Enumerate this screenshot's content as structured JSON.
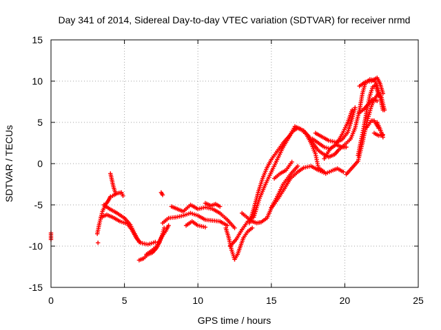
{
  "chart_data": {
    "type": "scatter",
    "title": "Day 341 of 2014, Sidereal Day-to-day VTEC variation (SDTVAR) for receiver nrmd",
    "xlabel": "GPS time / hours",
    "ylabel": "SDTVAR / TECUs",
    "xlim": [
      0,
      25
    ],
    "ylim": [
      -15,
      15
    ],
    "xticks": [
      0,
      5,
      10,
      15,
      20,
      25
    ],
    "yticks": [
      -15,
      -10,
      -5,
      0,
      5,
      10,
      15
    ],
    "xtick_labels": [
      "0",
      "5",
      "10",
      "15",
      "20",
      "25"
    ],
    "ytick_labels": [
      "-15",
      "-10",
      "-5",
      "0",
      "5",
      "10",
      "15"
    ],
    "grid": true,
    "marker": "+",
    "color": "#ff0000",
    "series": [
      {
        "name": "SDTVAR",
        "tracks": [
          [
            [
              0.0,
              -8.4
            ],
            [
              0.0,
              -9.2
            ]
          ],
          [
            [
              3.2,
              -9.6
            ]
          ],
          [
            [
              3.15,
              -8.5
            ],
            [
              3.3,
              -7.2
            ],
            [
              3.5,
              -5.8
            ],
            [
              3.7,
              -5.0
            ],
            [
              3.9,
              -4.5
            ],
            [
              4.05,
              -4.0
            ]
          ],
          [
            [
              4.05,
              -1.2
            ],
            [
              4.15,
              -2.0
            ],
            [
              4.25,
              -2.8
            ],
            [
              4.4,
              -3.6
            ]
          ],
          [
            [
              4.2,
              -3.9
            ],
            [
              4.5,
              -3.6
            ],
            [
              4.8,
              -3.5
            ],
            [
              4.9,
              -3.9
            ]
          ],
          [
            [
              3.4,
              -6.5
            ],
            [
              3.8,
              -6.2
            ],
            [
              4.2,
              -6.5
            ],
            [
              4.7,
              -7.0
            ],
            [
              5.2,
              -7.3
            ],
            [
              5.5,
              -8.0
            ],
            [
              5.8,
              -9.0
            ],
            [
              6.1,
              -9.6
            ],
            [
              6.6,
              -9.8
            ],
            [
              7.1,
              -9.5
            ]
          ],
          [
            [
              3.6,
              -5.0
            ],
            [
              4.0,
              -5.5
            ],
            [
              4.5,
              -6.0
            ],
            [
              5.0,
              -6.6
            ],
            [
              5.4,
              -7.4
            ],
            [
              5.7,
              -8.5
            ],
            [
              6.0,
              -9.5
            ]
          ],
          [
            [
              6.0,
              -11.7
            ],
            [
              6.3,
              -11.5
            ],
            [
              6.6,
              -11.0
            ],
            [
              6.9,
              -10.8
            ],
            [
              7.2,
              -10.2
            ],
            [
              7.4,
              -9.5
            ],
            [
              7.6,
              -8.5
            ],
            [
              7.7,
              -7.8
            ]
          ],
          [
            [
              6.5,
              -11.0
            ],
            [
              6.9,
              -10.5
            ],
            [
              7.2,
              -10.0
            ],
            [
              7.5,
              -9.0
            ],
            [
              7.8,
              -8.2
            ],
            [
              8.0,
              -7.5
            ]
          ],
          [
            [
              7.5,
              -3.5
            ],
            [
              7.6,
              -3.8
            ]
          ],
          [
            [
              7.6,
              -7.2
            ],
            [
              8.0,
              -6.6
            ],
            [
              8.5,
              -6.5
            ],
            [
              9.0,
              -6.3
            ],
            [
              9.5,
              -6.0
            ],
            [
              10.0,
              -6.3
            ],
            [
              10.5,
              -6.8
            ],
            [
              11.0,
              -6.9
            ],
            [
              11.5,
              -7.0
            ],
            [
              12.0,
              -7.5
            ]
          ],
          [
            [
              8.2,
              -5.2
            ],
            [
              8.6,
              -5.5
            ],
            [
              9.0,
              -5.8
            ],
            [
              9.5,
              -5.0
            ],
            [
              10.0,
              -5.5
            ],
            [
              10.5,
              -5.3
            ],
            [
              11.0,
              -5.5
            ],
            [
              11.5,
              -6.0
            ],
            [
              12.0,
              -6.8
            ],
            [
              12.5,
              -7.8
            ]
          ],
          [
            [
              9.2,
              -7.5
            ],
            [
              9.6,
              -7.0
            ],
            [
              10.0,
              -7.5
            ],
            [
              10.5,
              -7.7
            ]
          ],
          [
            [
              10.5,
              -4.8
            ],
            [
              10.9,
              -5.1
            ],
            [
              11.2,
              -4.9
            ],
            [
              11.5,
              -5.2
            ]
          ],
          [
            [
              11.9,
              -7.8
            ],
            [
              12.1,
              -9.0
            ],
            [
              12.3,
              -10.5
            ],
            [
              12.5,
              -11.6
            ]
          ],
          [
            [
              12.5,
              -11.6
            ],
            [
              12.7,
              -11.0
            ],
            [
              12.9,
              -10.0
            ],
            [
              13.1,
              -9.0
            ],
            [
              13.4,
              -8.2
            ],
            [
              13.7,
              -7.8
            ]
          ],
          [
            [
              12.2,
              -10.0
            ],
            [
              12.6,
              -9.2
            ],
            [
              13.0,
              -8.0
            ],
            [
              13.4,
              -7.0
            ],
            [
              13.8,
              -6.3
            ]
          ],
          [
            [
              13.0,
              -6.0
            ],
            [
              13.4,
              -6.6
            ],
            [
              13.7,
              -7.0
            ],
            [
              14.0,
              -7.2
            ],
            [
              14.3,
              -7.1
            ],
            [
              14.7,
              -6.6
            ],
            [
              15.0,
              -5.4
            ],
            [
              15.4,
              -4.4
            ],
            [
              15.9,
              -3.0
            ],
            [
              16.3,
              -1.8
            ],
            [
              16.8,
              -1.0
            ],
            [
              17.2,
              -0.5
            ],
            [
              17.7,
              -0.3
            ],
            [
              18.2,
              -0.8
            ],
            [
              18.7,
              -1.2
            ],
            [
              19.2,
              -0.8
            ],
            [
              19.5,
              -0.6
            ],
            [
              19.9,
              -1.0
            ]
          ],
          [
            [
              13.5,
              -7.2
            ],
            [
              13.8,
              -5.5
            ],
            [
              14.1,
              -3.5
            ],
            [
              14.4,
              -1.8
            ],
            [
              14.7,
              -0.5
            ],
            [
              15.0,
              0.5
            ],
            [
              15.4,
              1.5
            ],
            [
              15.8,
              2.5
            ],
            [
              16.2,
              3.3
            ],
            [
              16.5,
              4.0
            ],
            [
              16.8,
              4.3
            ],
            [
              17.2,
              4.0
            ],
            [
              17.6,
              3.2
            ],
            [
              17.9,
              2.3
            ],
            [
              18.2,
              1.6
            ],
            [
              18.5,
              1.2
            ],
            [
              18.9,
              0.8
            ],
            [
              19.3,
              1.1
            ],
            [
              19.6,
              1.7
            ],
            [
              20.0,
              2.3
            ],
            [
              20.4,
              3.0
            ],
            [
              20.7,
              4.3
            ],
            [
              21.0,
              6.5
            ],
            [
              21.2,
              8.5
            ],
            [
              21.4,
              9.8
            ],
            [
              21.7,
              10.2
            ],
            [
              22.0,
              10.1
            ],
            [
              22.2,
              9.5
            ],
            [
              22.4,
              8.0
            ],
            [
              22.6,
              6.5
            ]
          ],
          [
            [
              13.8,
              -6.5
            ],
            [
              14.2,
              -4.2
            ],
            [
              14.6,
              -2.5
            ],
            [
              15.0,
              -1.0
            ],
            [
              15.4,
              0.5
            ],
            [
              15.8,
              2.0
            ],
            [
              16.2,
              3.2
            ],
            [
              16.6,
              4.5
            ],
            [
              17.0,
              4.2
            ],
            [
              17.4,
              3.5
            ],
            [
              17.7,
              2.5
            ],
            [
              18.0,
              1.2
            ],
            [
              18.2,
              -0.5
            ],
            [
              18.6,
              -1.0
            ]
          ],
          [
            [
              15.2,
              -1.8
            ],
            [
              15.6,
              -1.2
            ],
            [
              16.0,
              -0.8
            ],
            [
              16.4,
              0.2
            ]
          ],
          [
            [
              15.0,
              -5.3
            ],
            [
              15.4,
              -4.0
            ],
            [
              15.8,
              -2.5
            ],
            [
              16.3,
              -1.3
            ],
            [
              16.8,
              -0.3
            ]
          ],
          [
            [
              17.8,
              3.0
            ],
            [
              18.2,
              2.5
            ],
            [
              18.6,
              2.0
            ],
            [
              19.0,
              1.8
            ],
            [
              19.4,
              2.3
            ],
            [
              19.8,
              3.5
            ],
            [
              20.2,
              5.0
            ],
            [
              20.5,
              6.5
            ]
          ],
          [
            [
              18.0,
              3.7
            ],
            [
              18.4,
              3.3
            ],
            [
              18.9,
              2.8
            ],
            [
              19.4,
              2.6
            ],
            [
              19.8,
              2.9
            ],
            [
              20.2,
              3.8
            ],
            [
              20.5,
              5.5
            ],
            [
              20.7,
              6.8
            ]
          ],
          [
            [
              18.6,
              0.6
            ],
            [
              19.0,
              1.8
            ],
            [
              19.4,
              2.3
            ],
            [
              19.8,
              2.0
            ],
            [
              20.1,
              2.0
            ]
          ],
          [
            [
              20.1,
              -1.3
            ],
            [
              20.5,
              -0.5
            ],
            [
              20.9,
              0.3
            ],
            [
              21.2,
              2.5
            ],
            [
              21.5,
              5.0
            ],
            [
              21.8,
              6.9
            ],
            [
              22.0,
              7.8
            ],
            [
              22.3,
              8.5
            ],
            [
              22.5,
              8.0
            ],
            [
              22.7,
              6.5
            ]
          ],
          [
            [
              20.9,
              1.0
            ],
            [
              21.1,
              2.8
            ],
            [
              21.3,
              4.5
            ],
            [
              21.5,
              6.5
            ],
            [
              21.7,
              8.2
            ],
            [
              21.9,
              9.3
            ],
            [
              22.1,
              9.5
            ],
            [
              22.3,
              8.3
            ]
          ],
          [
            [
              21.0,
              6.2
            ],
            [
              21.3,
              6.6
            ],
            [
              21.6,
              7.2
            ],
            [
              21.9,
              7.8
            ],
            [
              22.2,
              7.6
            ]
          ],
          [
            [
              21.5,
              4.4
            ],
            [
              21.8,
              5.2
            ],
            [
              22.0,
              5.2
            ],
            [
              22.3,
              4.3
            ]
          ],
          [
            [
              22.2,
              5.0
            ],
            [
              22.4,
              4.2
            ],
            [
              22.6,
              3.2
            ]
          ],
          [
            [
              21.0,
              9.4
            ],
            [
              21.4,
              9.9
            ],
            [
              21.8,
              10.0
            ],
            [
              22.2,
              10.4
            ],
            [
              22.4,
              9.7
            ],
            [
              22.6,
              8.5
            ]
          ],
          [
            [
              22.0,
              3.7
            ],
            [
              22.3,
              3.4
            ],
            [
              22.6,
              3.5
            ]
          ]
        ]
      }
    ]
  }
}
